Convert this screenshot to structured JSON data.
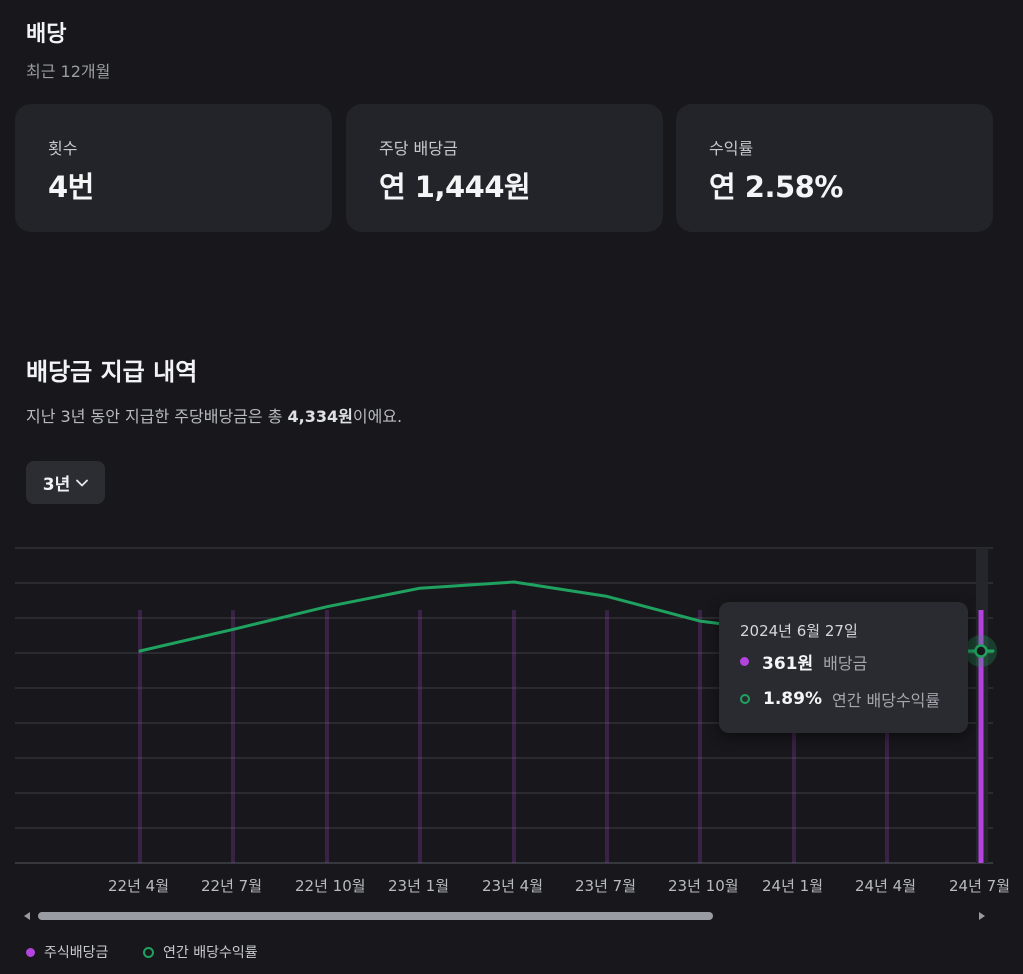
{
  "summary": {
    "title": "배당",
    "subtitle": "최근 12개월",
    "cards": [
      {
        "label": "횟수",
        "value": "4번"
      },
      {
        "label": "주당 배당금",
        "value": "연 1,444원"
      },
      {
        "label": "수익률",
        "value": "연 2.58%"
      }
    ]
  },
  "history": {
    "title": "배당금 지급 내역",
    "desc_prefix": "지난 3년 동안 지급한 주당배당금은 총 ",
    "desc_total": "4,334원",
    "desc_suffix": "이에요.",
    "period": "3년"
  },
  "tooltip": {
    "date": "2024년 6월 27일",
    "dividend_value": "361원",
    "dividend_label": "배당금",
    "yield_value": "1.89%",
    "yield_label": "연간 배당수익률"
  },
  "colors": {
    "dividend": "#b443e0",
    "yield": "#1fa15f",
    "background": "#18181c"
  },
  "chart_data": {
    "type": "bar",
    "categories": [
      "22년 4월",
      "22년 7월",
      "22년 10월",
      "23년 1월",
      "23년 4월",
      "23년 7월",
      "23년 10월",
      "24년 1월",
      "24년 4월",
      "24년 7월"
    ],
    "series": [
      {
        "name": "주식배당금",
        "values": [
          361,
          361,
          361,
          361,
          361,
          361,
          361,
          361,
          361,
          361
        ]
      },
      {
        "name": "연간 배당수익률",
        "values": [
          1.89,
          2.1,
          2.32,
          2.5,
          2.56,
          2.42,
          2.18,
          null,
          null,
          1.89
        ]
      }
    ],
    "selected_index": 9,
    "legend": [
      "주식배당금",
      "연간 배당수익률"
    ],
    "legend_position": "bottom-left",
    "grid": true
  }
}
